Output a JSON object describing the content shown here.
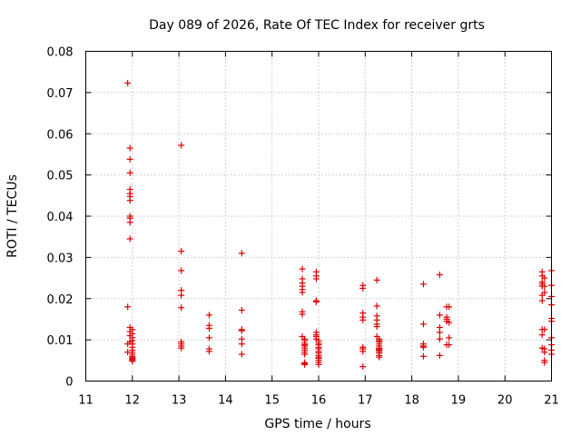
{
  "chart_data": {
    "type": "scatter",
    "title": "Day 089 of 2026, Rate Of TEC Index for receiver grts",
    "xlabel": "GPS time / hours",
    "ylabel": "ROTI / TECUs",
    "xlim": [
      11,
      21
    ],
    "ylim": [
      0,
      0.08
    ],
    "xticks": [
      "11",
      "12",
      "13",
      "14",
      "15",
      "16",
      "17",
      "18",
      "19",
      "20",
      "21"
    ],
    "yticks": [
      "0",
      "0.01",
      "0.02",
      "0.03",
      "0.04",
      "0.05",
      "0.06",
      "0.07",
      "0.08"
    ],
    "grid": true,
    "marker": "plus",
    "color": "#dd0000",
    "series": [
      {
        "x": [
          11.9,
          11.9,
          11.9,
          11.9,
          11.95,
          11.95,
          11.95,
          11.95,
          11.95,
          11.95,
          11.95,
          11.95,
          11.95,
          11.95,
          11.95,
          11.95,
          11.95,
          11.95,
          11.95,
          12.0,
          12.0,
          12.0,
          12.0,
          12.0,
          12.0,
          12.0,
          12.0,
          12.0,
          12.0,
          12.0,
          12.0,
          12.0,
          12.0,
          12.0,
          13.05,
          13.05,
          13.05,
          13.05,
          13.05,
          13.05,
          13.05,
          13.05,
          13.05,
          13.05,
          13.65,
          13.65,
          13.65,
          13.65,
          13.65,
          13.65,
          14.35,
          14.35,
          14.35,
          14.35,
          14.35,
          14.35,
          14.35,
          15.65,
          15.65,
          15.65,
          15.65,
          15.65,
          15.65,
          15.65,
          15.65,
          15.65,
          15.7,
          15.7,
          15.7,
          15.7,
          15.7,
          15.7,
          15.7,
          15.7,
          15.7,
          15.7,
          15.7,
          15.7,
          15.95,
          15.95,
          15.95,
          15.95,
          15.95,
          15.95,
          15.95,
          15.95,
          15.95,
          16.0,
          16.0,
          16.0,
          16.0,
          16.0,
          16.0,
          16.0,
          16.0,
          16.0,
          16.0,
          16.0,
          16.0,
          16.0,
          16.95,
          16.95,
          16.95,
          16.95,
          16.95,
          16.95,
          16.95,
          16.95,
          16.95,
          17.25,
          17.25,
          17.25,
          17.25,
          17.25,
          17.25,
          17.25,
          17.3,
          17.3,
          17.3,
          17.3,
          17.3,
          17.3,
          17.3,
          17.3,
          17.3,
          17.3,
          17.3,
          17.3,
          18.25,
          18.25,
          18.25,
          18.25,
          18.25,
          18.25,
          18.6,
          18.6,
          18.6,
          18.6,
          18.6,
          18.6,
          18.75,
          18.75,
          18.75,
          18.75,
          18.75,
          18.8,
          18.8,
          18.8,
          18.8,
          20.8,
          20.8,
          20.8,
          20.8,
          20.8,
          20.8,
          20.8,
          20.8,
          20.8,
          20.8,
          20.85,
          20.85,
          20.85,
          20.85,
          20.85,
          20.85,
          20.85,
          20.85,
          21.0,
          21.0,
          21.0,
          21.0,
          21.0,
          21.0,
          21.0,
          21.0,
          21.0,
          21.0
        ],
        "y": [
          0.0723,
          0.018,
          0.009,
          0.007,
          0.0565,
          0.0538,
          0.0505,
          0.0465,
          0.0455,
          0.0448,
          0.0438,
          0.04,
          0.0395,
          0.0385,
          0.0345,
          0.013,
          0.012,
          0.011,
          0.0095,
          0.0125,
          0.0115,
          0.0105,
          0.0098,
          0.009,
          0.0082,
          0.0075,
          0.007,
          0.0065,
          0.006,
          0.0058,
          0.0055,
          0.0053,
          0.005,
          0.0048,
          0.0572,
          0.0315,
          0.0268,
          0.022,
          0.0208,
          0.0178,
          0.0095,
          0.009,
          0.0085,
          0.008,
          0.016,
          0.0135,
          0.0128,
          0.0105,
          0.0078,
          0.0072,
          0.031,
          0.0172,
          0.0125,
          0.0122,
          0.0102,
          0.009,
          0.0065,
          0.0272,
          0.0248,
          0.0238,
          0.023,
          0.0222,
          0.0215,
          0.0168,
          0.0162,
          0.0108,
          0.0102,
          0.0098,
          0.0092,
          0.0088,
          0.0085,
          0.008,
          0.0075,
          0.007,
          0.0065,
          0.0045,
          0.0042,
          0.004,
          0.0265,
          0.0255,
          0.0248,
          0.0195,
          0.0192,
          0.0118,
          0.0112,
          0.0108,
          0.0102,
          0.0098,
          0.0092,
          0.0088,
          0.0082,
          0.0078,
          0.0072,
          0.0068,
          0.0062,
          0.0058,
          0.0055,
          0.005,
          0.0045,
          0.004,
          0.0232,
          0.0225,
          0.0165,
          0.0155,
          0.0148,
          0.0082,
          0.0078,
          0.0072,
          0.0035,
          0.0245,
          0.0182,
          0.0158,
          0.0148,
          0.0138,
          0.0132,
          0.0108,
          0.0102,
          0.0098,
          0.0095,
          0.009,
          0.0085,
          0.008,
          0.0078,
          0.0075,
          0.0072,
          0.0068,
          0.0062,
          0.0058,
          0.0235,
          0.0138,
          0.009,
          0.0085,
          0.0082,
          0.006,
          0.0258,
          0.016,
          0.013,
          0.0118,
          0.0102,
          0.0062,
          0.018,
          0.0155,
          0.015,
          0.0145,
          0.0088,
          0.018,
          0.0142,
          0.0105,
          0.0088,
          0.0265,
          0.0255,
          0.024,
          0.0235,
          0.023,
          0.0208,
          0.0195,
          0.0125,
          0.0112,
          0.008,
          0.025,
          0.023,
          0.0215,
          0.0125,
          0.0078,
          0.007,
          0.005,
          0.0045,
          0.0268,
          0.0232,
          0.0205,
          0.0185,
          0.0152,
          0.0145,
          0.0105,
          0.0088,
          0.0075,
          0.0065
        ]
      }
    ]
  }
}
